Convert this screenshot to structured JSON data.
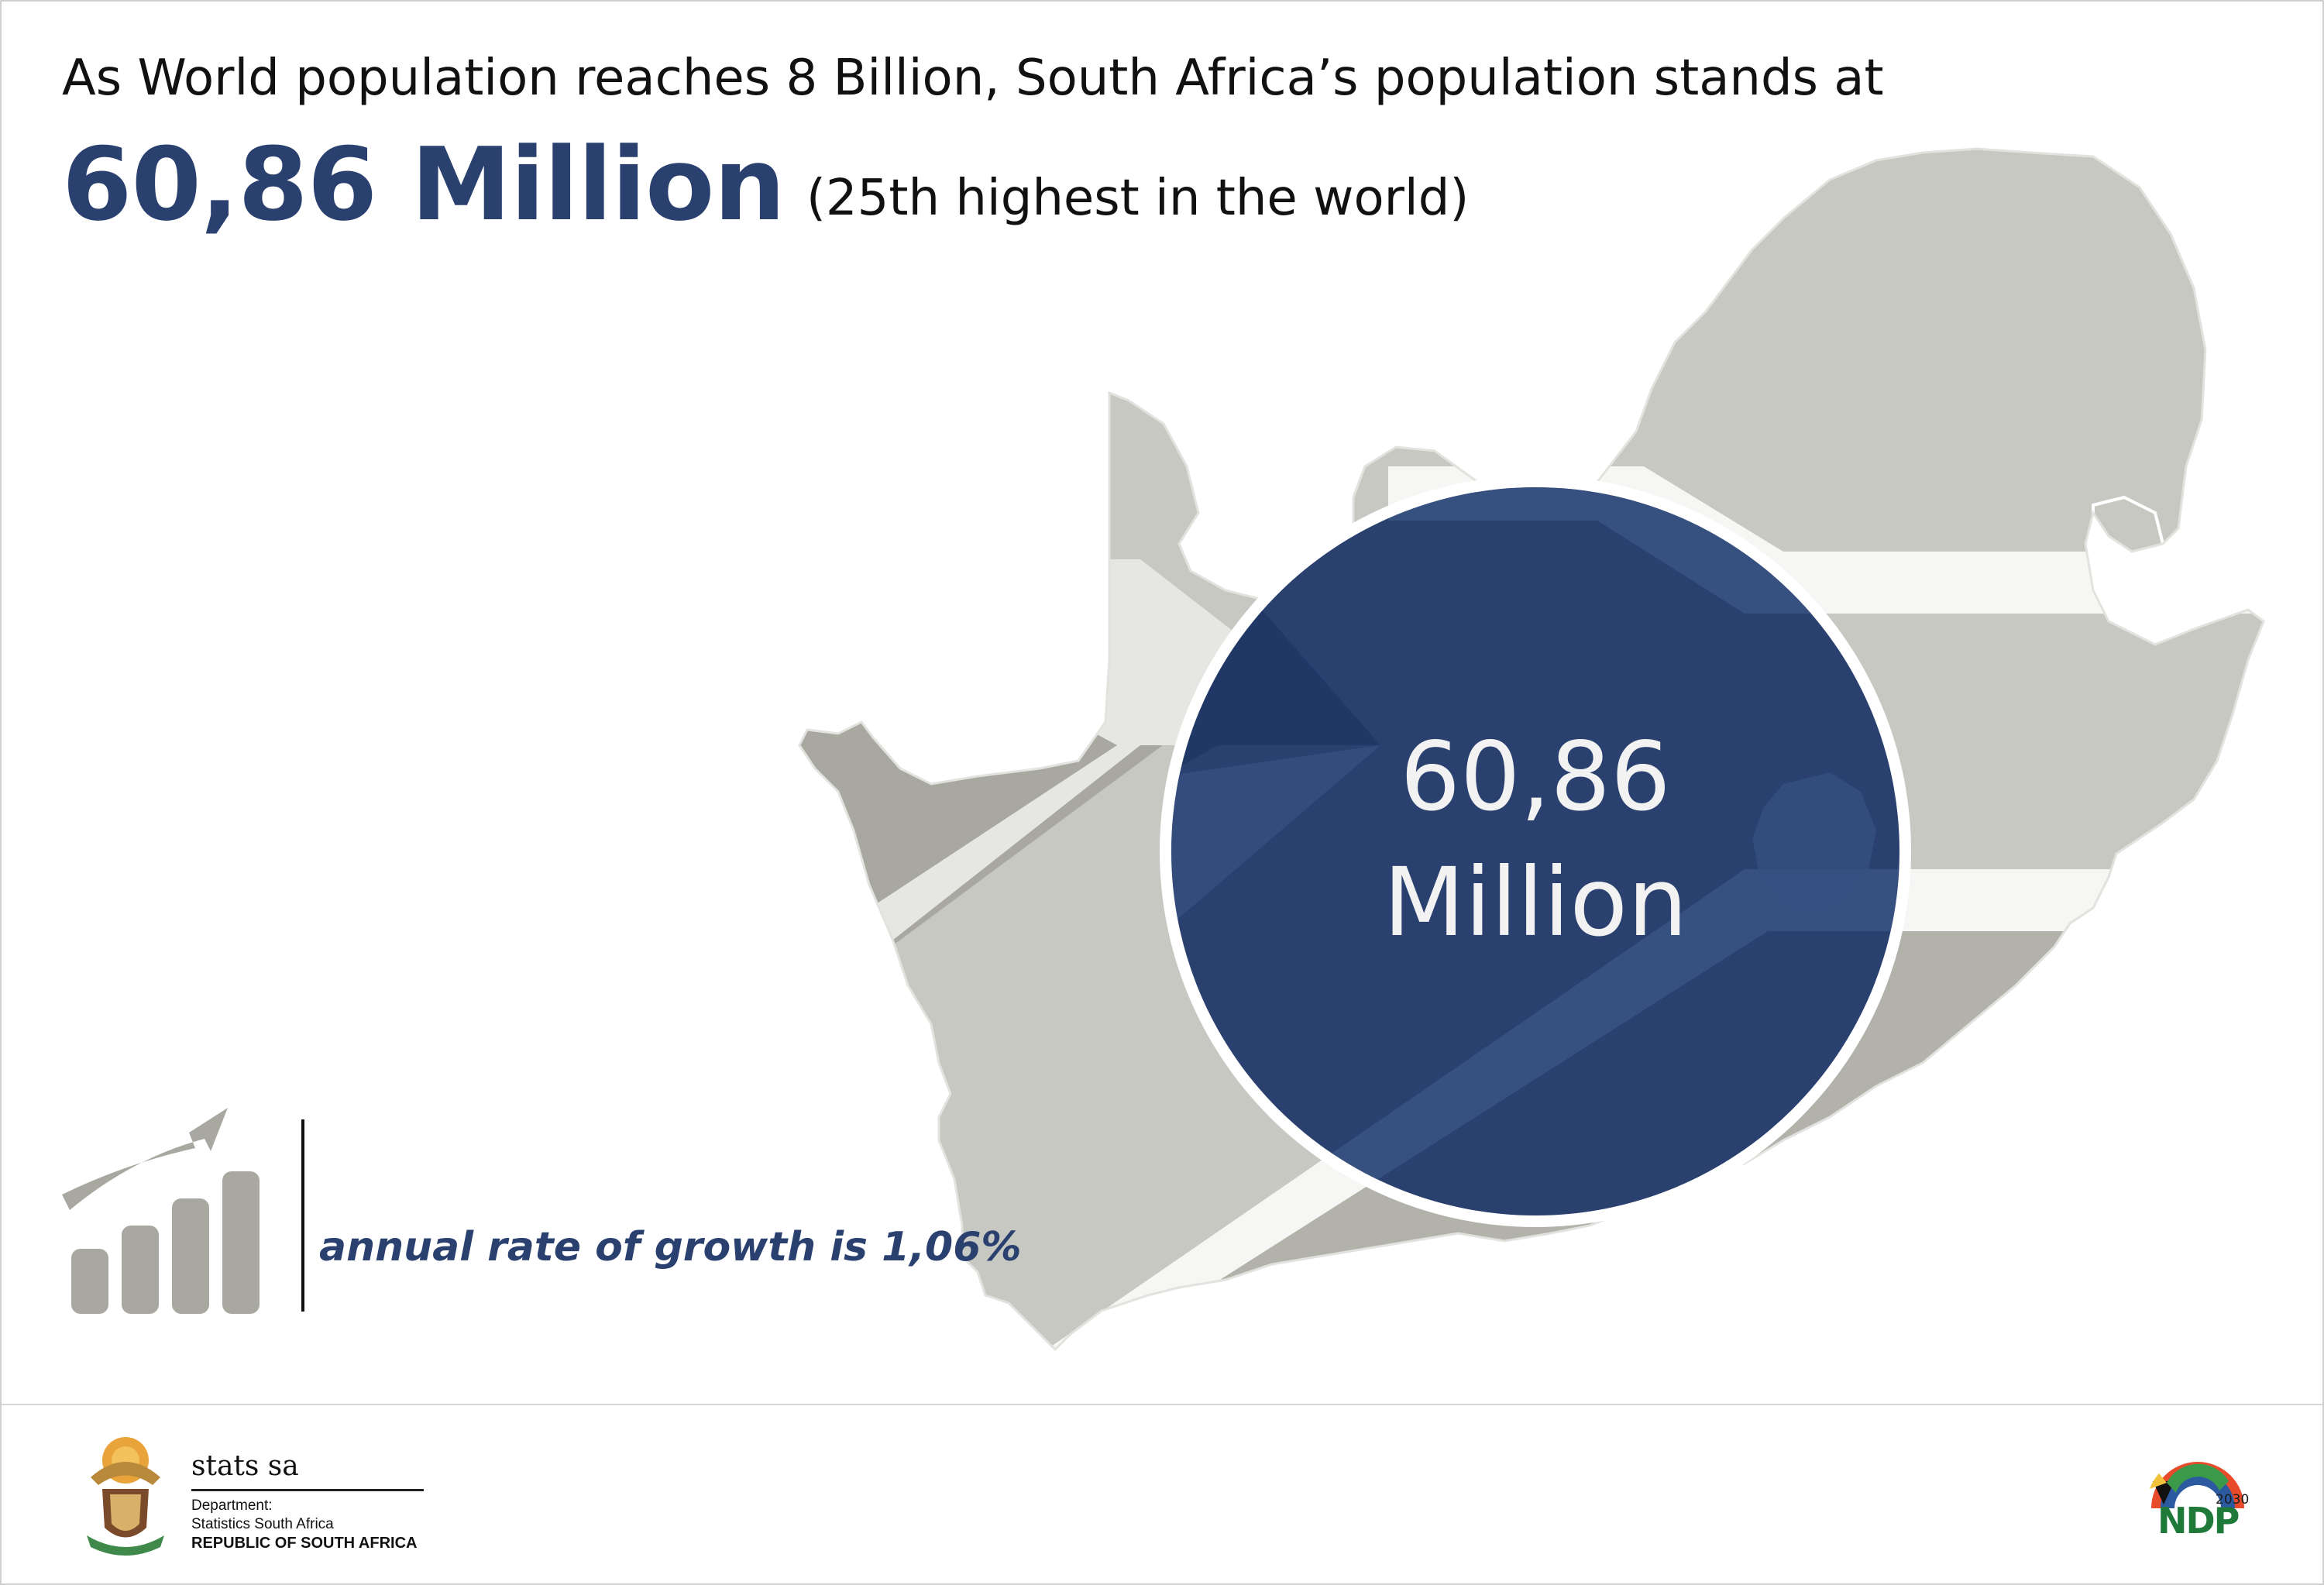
{
  "header": {
    "headline": "As World population reaches 8 Billion, South Africa’s population stands at",
    "population_value": "60,86 Million",
    "rank_note": "(25th highest in the world)"
  },
  "circle": {
    "value": "60,86",
    "unit": "Million"
  },
  "growth": {
    "text": "annual rate of growth is 1,06%",
    "icon": "growth-chart-icon"
  },
  "footer": {
    "brand_name": "stats sa",
    "department_line1": "Department:",
    "department_line2": "Statistics South Africa",
    "department_line3": "REPUBLIC OF SOUTH AFRICA",
    "ndp_label": "NDP",
    "ndp_year": "2030"
  },
  "colors": {
    "navy": "#2a4170",
    "map_grey": "#c8c8c2",
    "map_dark_grey": "#a9a8a0",
    "ndp_green": "#1f7a3a"
  }
}
